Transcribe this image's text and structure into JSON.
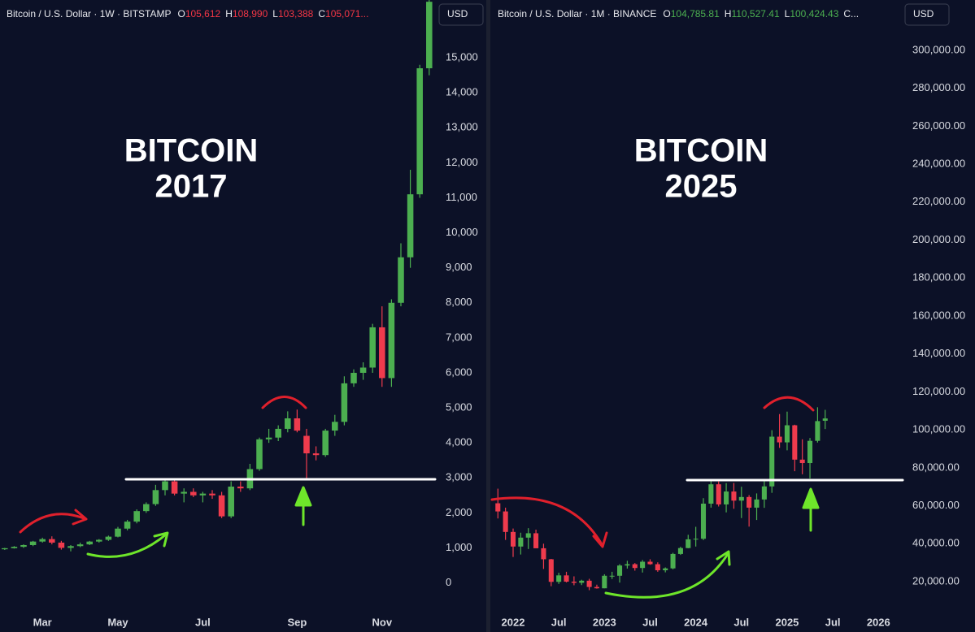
{
  "chart_data": [
    {
      "type": "candlestick",
      "header": {
        "symbol": "Bitcoin / U.S. Dollar · 1W · BITSTAMP",
        "ohlc": [
          {
            "key": "O",
            "value": "105,612"
          },
          {
            "key": "H",
            "value": "108,990"
          },
          {
            "key": "L",
            "value": "103,388"
          },
          {
            "key": "C",
            "value": "105,071..."
          }
        ]
      },
      "currency": "USD",
      "title_lines": [
        "BITCOIN",
        "2017"
      ],
      "header_color": "#f23645",
      "up_color": "#4caf50",
      "down_color": "#ef3b4d",
      "categories": [
        null,
        null,
        null,
        null,
        "Mar",
        null,
        null,
        null,
        null,
        null,
        null,
        null,
        "May",
        null,
        null,
        null,
        null,
        null,
        null,
        null,
        null,
        "Jul",
        null,
        null,
        null,
        null,
        null,
        null,
        null,
        null,
        null,
        "Sep",
        null,
        null,
        null,
        null,
        null,
        null,
        null,
        null,
        "Nov",
        null,
        null,
        null,
        null,
        null
      ],
      "open": [
        960,
        990,
        1030,
        1080,
        1180,
        1250,
        1150,
        1000,
        1050,
        1100,
        1180,
        1230,
        1320,
        1550,
        1750,
        2050,
        2250,
        2650,
        2900,
        2550,
        2600,
        2500,
        2550,
        2500,
        1900,
        2750,
        2700,
        3250,
        4100,
        4150,
        4400,
        4700,
        4200,
        3700,
        3650,
        4350,
        4600,
        5700,
        6000,
        6150,
        7300,
        5850,
        8000,
        9300,
        11100,
        14700
      ],
      "high": [
        1000,
        1050,
        1100,
        1200,
        1290,
        1330,
        1200,
        1080,
        1150,
        1200,
        1250,
        1350,
        1600,
        1800,
        2100,
        2300,
        2800,
        2950,
        2980,
        2700,
        2700,
        2600,
        2650,
        2600,
        2900,
        2900,
        3400,
        4150,
        4400,
        4500,
        4900,
        4950,
        4400,
        3900,
        4400,
        4800,
        5900,
        6100,
        6300,
        7400,
        7900,
        8100,
        9700,
        11800,
        14800,
        17000
      ],
      "low": [
        940,
        980,
        1000,
        1050,
        1150,
        1100,
        950,
        900,
        1020,
        1080,
        1150,
        1200,
        1300,
        1500,
        1700,
        2000,
        2200,
        2500,
        2500,
        2300,
        2450,
        2300,
        2400,
        1850,
        1850,
        2600,
        2650,
        3200,
        4000,
        4050,
        4300,
        4300,
        2970,
        3500,
        3600,
        4200,
        4500,
        5600,
        5800,
        6000,
        5600,
        5600,
        7900,
        9000,
        11000,
        14500
      ],
      "close": [
        990,
        1030,
        1080,
        1180,
        1250,
        1150,
        1000,
        1050,
        1100,
        1180,
        1230,
        1320,
        1550,
        1750,
        2050,
        2250,
        2650,
        2900,
        2550,
        2600,
        2500,
        2550,
        2500,
        1900,
        2750,
        2700,
        3250,
        4100,
        4150,
        4400,
        4700,
        4350,
        3700,
        3650,
        4350,
        4600,
        5700,
        6000,
        6150,
        7300,
        5850,
        8000,
        9300,
        11100,
        14700,
        16600
      ],
      "ylim": [
        -800,
        16650
      ],
      "yticks": [
        0,
        {
          "value": 1000,
          "label": "1,000"
        },
        {
          "value": 2000,
          "label": "2,000"
        },
        {
          "value": 3000,
          "label": "3,000"
        },
        {
          "value": 4000,
          "label": "4,000"
        },
        {
          "value": 5000,
          "label": "5,000"
        },
        {
          "value": 6000,
          "label": "6,000"
        },
        {
          "value": 7000,
          "label": "7,000"
        },
        {
          "value": 8000,
          "label": "8,000"
        },
        {
          "value": 9000,
          "label": "9,000"
        },
        {
          "value": 10000,
          "label": "10,000"
        },
        {
          "value": 11000,
          "label": "11,000"
        },
        {
          "value": 12000,
          "label": "12,000"
        },
        {
          "value": 13000,
          "label": "13,000"
        },
        {
          "value": 14000,
          "label": "14,000"
        },
        {
          "value": 15000,
          "label": "15,000"
        }
      ]
    },
    {
      "type": "candlestick",
      "header": {
        "symbol": "Bitcoin / U.S. Dollar · 1M · BINANCE",
        "ohlc": [
          {
            "key": "O",
            "value": "104,785.81"
          },
          {
            "key": "H",
            "value": "110,527.41"
          },
          {
            "key": "L",
            "value": "100,424.43"
          },
          {
            "key": "C..."
          }
        ]
      },
      "currency": "USD",
      "title_lines": [
        "BITCOIN",
        "2025"
      ],
      "header_color": "#4caf50",
      "up_color": "#4caf50",
      "down_color": "#ef3b4d",
      "categories": [
        null,
        null,
        "2022",
        null,
        null,
        null,
        null,
        null,
        "Jul",
        null,
        null,
        null,
        null,
        null,
        "2023",
        null,
        null,
        null,
        null,
        null,
        "Jul",
        null,
        null,
        null,
        null,
        null,
        "2024",
        null,
        null,
        null,
        null,
        null,
        "Jul",
        null,
        null,
        null,
        null,
        null,
        "2025",
        null,
        null,
        null,
        null,
        null,
        "Jul",
        null,
        null,
        null,
        null,
        null,
        "2026"
      ],
      "open": [
        61300,
        57000,
        46200,
        38500,
        43200,
        45500,
        37600,
        31800,
        19900,
        23300,
        20000,
        19400,
        20500,
        17200,
        16500,
        23100,
        23100,
        28500,
        29200,
        27200,
        30500,
        29200,
        26000,
        27000,
        34600,
        37700,
        42300,
        42600,
        61100,
        71300,
        60700,
        67500,
        62700,
        64600,
        59000,
        63300,
        70200,
        96400,
        93400,
        102400,
        84300,
        82500,
        94200,
        104785.81,
        null,
        null,
        null,
        null,
        null,
        null,
        null
      ],
      "high": [
        69000,
        59000,
        48000,
        45800,
        48200,
        47400,
        40000,
        32000,
        24700,
        25200,
        22800,
        21000,
        21500,
        18400,
        23900,
        25200,
        29200,
        31000,
        29800,
        31400,
        31800,
        30200,
        27500,
        35200,
        38400,
        44700,
        48900,
        64000,
        73800,
        72800,
        71900,
        72000,
        70000,
        65600,
        66500,
        73600,
        99800,
        108300,
        109600,
        102700,
        95000,
        95700,
        111900,
        110527.41,
        null,
        null,
        null,
        null,
        null,
        null,
        null
      ],
      "low": [
        53300,
        42000,
        33000,
        34300,
        37200,
        37700,
        26700,
        17600,
        18800,
        19600,
        18100,
        18200,
        15500,
        16300,
        16500,
        21400,
        19500,
        26900,
        25800,
        24800,
        28900,
        25200,
        24900,
        26500,
        34100,
        37600,
        38500,
        41900,
        59000,
        59600,
        56500,
        58400,
        53500,
        49000,
        52500,
        58900,
        66800,
        90500,
        89200,
        78200,
        76600,
        74400,
        93300,
        100424.43,
        null,
        null,
        null,
        null,
        null,
        null,
        null
      ],
      "close": [
        57000,
        46200,
        38500,
        43200,
        45500,
        37600,
        31800,
        19900,
        23300,
        20000,
        19400,
        20500,
        17200,
        16500,
        23100,
        23100,
        28500,
        29200,
        27200,
        30500,
        29200,
        26000,
        27000,
        34600,
        37700,
        42300,
        42600,
        61100,
        71300,
        60700,
        67500,
        62700,
        64600,
        59000,
        63300,
        70200,
        96400,
        93400,
        102400,
        84300,
        82500,
        94200,
        104600,
        106000,
        null,
        null,
        null,
        null,
        null,
        null,
        null
      ],
      "ylim": [
        4600,
        326500
      ],
      "yticks": [
        {
          "value": 20000,
          "label": "20,000.00"
        },
        {
          "value": 40000,
          "label": "40,000.00"
        },
        {
          "value": 60000,
          "label": "60,000.00"
        },
        {
          "value": 80000,
          "label": "80,000.00"
        },
        {
          "value": 100000,
          "label": "100,000.00"
        },
        {
          "value": 120000,
          "label": "120,000.00"
        },
        {
          "value": 140000,
          "label": "140,000.00"
        },
        {
          "value": 160000,
          "label": "160,000.00"
        },
        {
          "value": 180000,
          "label": "180,000.00"
        },
        {
          "value": 200000,
          "label": "200,000.00"
        },
        {
          "value": 220000,
          "label": "220,000.00"
        },
        {
          "value": 240000,
          "label": "240,000.00"
        },
        {
          "value": 260000,
          "label": "260,000.00"
        },
        {
          "value": 280000,
          "label": "280,000.00"
        },
        {
          "value": 300000,
          "label": "300,000.00"
        }
      ]
    }
  ]
}
